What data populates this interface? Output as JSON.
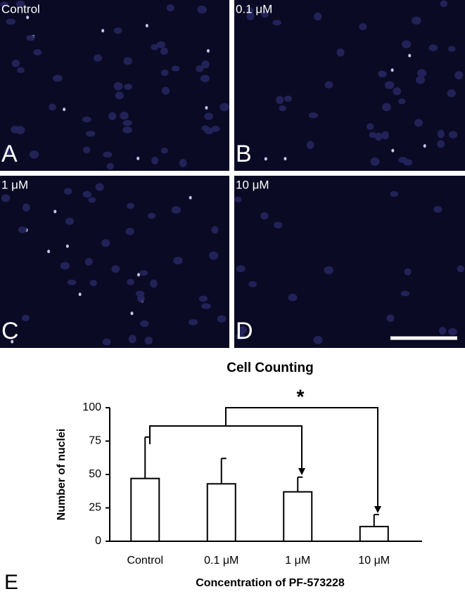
{
  "panels": [
    {
      "label": "Control",
      "letter": "A"
    },
    {
      "label": "0.1 μM",
      "letter": "B"
    },
    {
      "label": "1 μM",
      "letter": "C"
    },
    {
      "label": "10 μM",
      "letter": "D"
    }
  ],
  "chart_letter": "E",
  "chart_data": {
    "type": "bar",
    "title": "Cell Counting",
    "x_label": "Concentration of PF-573228",
    "y_label": "Number of nuclei",
    "categories": [
      "Control",
      "0.1 μM",
      "1 μM",
      "10 μM"
    ],
    "values": [
      47,
      43,
      37,
      11
    ],
    "errors": [
      31,
      19,
      11,
      9
    ],
    "color": "#ffffff",
    "ylim": [
      0,
      100
    ],
    "yticks": [
      0,
      25,
      50,
      75,
      100
    ],
    "annotation": "*"
  }
}
